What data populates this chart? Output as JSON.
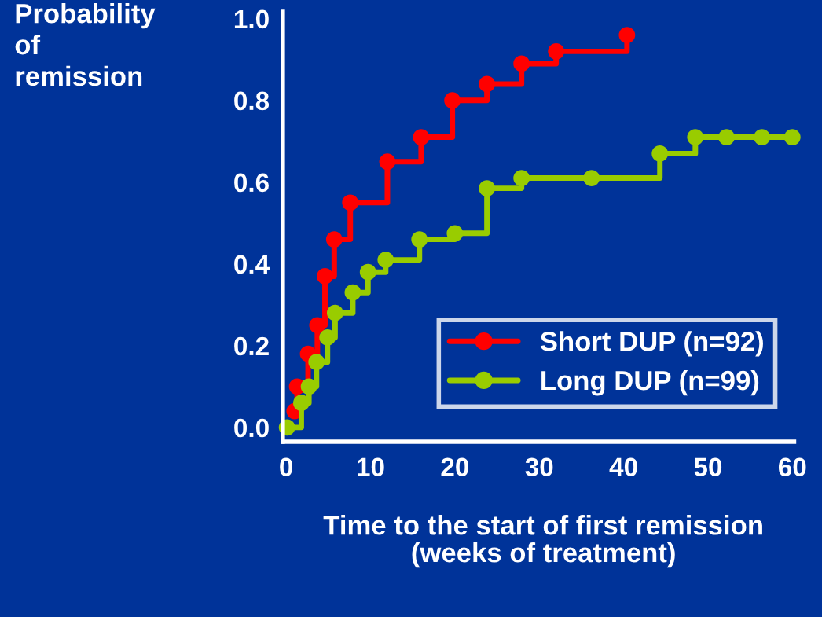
{
  "chart_data": {
    "type": "step",
    "ylabel": "Probability\nof\nremission",
    "xlabel": "Time to the start of first remission\n(weeks of treatment)",
    "series": [
      {
        "name": "Short DUP (n=92)",
        "color": "#ff0000",
        "x": [
          1.0,
          1.3,
          2.6,
          3.7,
          4.6,
          5.7,
          7.6,
          12.0,
          16.0,
          19.7,
          23.8,
          27.9,
          32.0,
          40.4
        ],
        "values": [
          0.04,
          0.1,
          0.18,
          0.25,
          0.37,
          0.46,
          0.55,
          0.65,
          0.71,
          0.8,
          0.84,
          0.89,
          0.92,
          0.96
        ]
      },
      {
        "name": "Long DUP (n=99)",
        "color": "#99cc00",
        "x": [
          0.1,
          1.8,
          2.7,
          3.6,
          4.9,
          5.8,
          7.9,
          9.7,
          11.8,
          15.8,
          20.0,
          23.8,
          27.9,
          36.2,
          44.3,
          48.5,
          52.2,
          56.4,
          60.0
        ],
        "values": [
          0.0,
          0.06,
          0.1,
          0.16,
          0.22,
          0.28,
          0.33,
          0.38,
          0.41,
          0.46,
          0.475,
          0.585,
          0.61,
          0.61,
          0.67,
          0.71,
          0.71,
          0.71,
          0.71
        ]
      }
    ],
    "xlim": [
      -0.4,
      60.2
    ],
    "ylim": [
      -0.035,
      1.017
    ],
    "xticks": [
      0,
      10,
      20,
      30,
      40,
      50,
      60
    ],
    "yticks": [
      {
        "value": 0,
        "label": "0.0"
      },
      {
        "value": 0.2,
        "label": "0.2"
      },
      {
        "value": 0.4,
        "label": "0.4"
      },
      {
        "value": 0.6,
        "label": "0.6"
      },
      {
        "value": 0.8,
        "label": "0.8"
      },
      {
        "value": 1.0,
        "label": "1.0"
      }
    ],
    "marker": "circle",
    "line_style": "solid",
    "legend": "bottom right",
    "grid": false
  }
}
